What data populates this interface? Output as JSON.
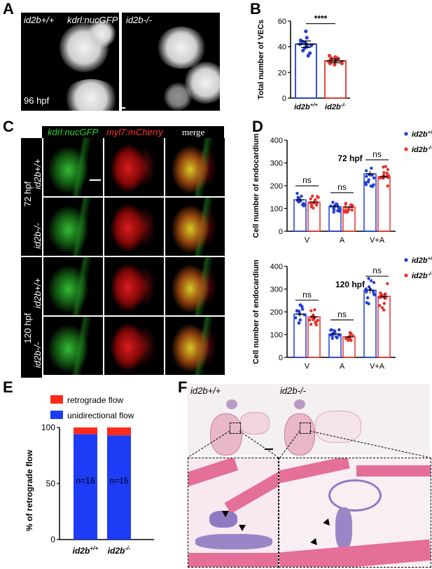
{
  "panels": {
    "A": {
      "letter": "A",
      "left_label": "id2b+/+",
      "marker_label": "kdrl:nucGFP",
      "right_label": "id2b-/-",
      "time_label": "96 hpf"
    },
    "B": {
      "letter": "B",
      "significance": "****"
    },
    "C": {
      "letter": "C",
      "header_green": "kdrl:nucGFP",
      "header_red": "myl7:mCherry",
      "header_merge": "merge",
      "time_72": "72 hpf",
      "time_120": "120 hpf",
      "row_labels": [
        "id2b+/+",
        "id2b-/-",
        "id2b+/+",
        "id2b-/-"
      ]
    },
    "D": {
      "letter": "D"
    },
    "E": {
      "letter": "E"
    },
    "F": {
      "letter": "F",
      "left_label": "id2b+/+",
      "right_label": "id2b-/-"
    }
  },
  "chart_data": [
    {
      "id": "B",
      "type": "bar",
      "categories": [
        "id2b+/+",
        "id2b-/-"
      ],
      "values": [
        42,
        29
      ],
      "errors": [
        2.5,
        1.5
      ],
      "points": [
        [
          52,
          47,
          45,
          44,
          43,
          42,
          42,
          41,
          40,
          39,
          37,
          35,
          33
        ],
        [
          33,
          32,
          31,
          31,
          30,
          30,
          29,
          29,
          28,
          28,
          27,
          27,
          26
        ]
      ],
      "ylabel": "Total number of VECs",
      "ylim": [
        0,
        60
      ],
      "yticks": [
        0,
        20,
        40,
        60
      ],
      "colors": [
        "#1f3ed6",
        "#e8322b"
      ]
    },
    {
      "id": "D-top",
      "type": "bar",
      "title": "72 hpf",
      "categories": [
        "V",
        "A",
        "V+A"
      ],
      "series": [
        {
          "name": "id2b+/+",
          "values": [
            138,
            108,
            252
          ],
          "color": "#1f3ed6"
        },
        {
          "name": "id2b-/-",
          "values": [
            128,
            106,
            240
          ],
          "color": "#e8322b"
        }
      ],
      "significance": [
        "ns",
        "ns",
        "ns"
      ],
      "ylabel": "Cell number of endocardium",
      "ylim": [
        0,
        400
      ],
      "yticks": [
        0,
        100,
        200,
        300,
        400
      ],
      "legend": "right"
    },
    {
      "id": "D-bottom",
      "type": "bar",
      "title": "120 hpf",
      "categories": [
        "V",
        "A",
        "V+A"
      ],
      "series": [
        {
          "name": "id2b+/+",
          "values": [
            190,
            103,
            295
          ],
          "color": "#1f3ed6"
        },
        {
          "name": "id2b-/-",
          "values": [
            178,
            90,
            268
          ],
          "color": "#e8322b"
        }
      ],
      "significance": [
        "ns",
        "ns",
        "ns"
      ],
      "ylabel": "Cell number of endocardium",
      "ylim": [
        0,
        400
      ],
      "yticks": [
        0,
        100,
        200,
        300,
        400
      ],
      "legend": "right"
    },
    {
      "id": "E",
      "type": "bar",
      "stacked": true,
      "categories": [
        "id2b+/+",
        "id2b-/-"
      ],
      "series": [
        {
          "name": "unidirectional flow",
          "values": [
            94,
            93
          ],
          "color": "#1d3cf5"
        },
        {
          "name": "retrograde flow",
          "values": [
            6,
            7
          ],
          "color": "#ff2a1a"
        }
      ],
      "annotations": [
        "n=16",
        "n=15"
      ],
      "ylabel": "% of retrograde flow",
      "ylim": [
        0,
        100
      ],
      "yticks": [
        0,
        50,
        100
      ],
      "legend": "top"
    }
  ]
}
